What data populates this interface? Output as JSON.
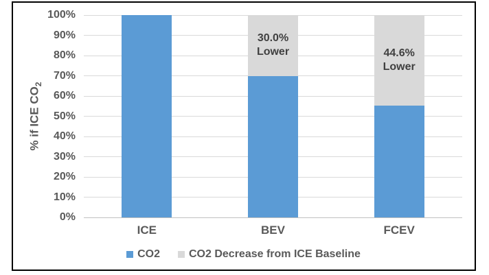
{
  "chart_data": {
    "type": "bar",
    "stacked": true,
    "title": "",
    "categories": [
      "ICE",
      "BEV",
      "FCEV"
    ],
    "series": [
      {
        "name": "CO2",
        "color": "#5B9BD5",
        "values": [
          100,
          70,
          55.4
        ]
      },
      {
        "name": "CO2 Decrease from ICE Baseline",
        "color": "#D9D9D9",
        "values": [
          0,
          30.0,
          44.6
        ]
      }
    ],
    "segment_labels": [
      {
        "category": "BEV",
        "lines": [
          "30.0%",
          "Lower"
        ]
      },
      {
        "category": "FCEV",
        "lines": [
          "44.6%",
          "Lower"
        ]
      }
    ],
    "xlabel": "",
    "ylabel": "% if ICE CO2",
    "ylabel_base": "% if ICE CO",
    "ylabel_subscript": "2",
    "ylim": [
      0,
      100
    ],
    "ytick_step": 10,
    "ytick_labels": [
      "0%",
      "10%",
      "20%",
      "30%",
      "40%",
      "50%",
      "60%",
      "70%",
      "80%",
      "90%",
      "100%"
    ],
    "grid": true,
    "legend_position": "bottom"
  },
  "style": {
    "bar_color": "#5B9BD5",
    "decrease_color": "#D9D9D9",
    "axis_text_color": "#595959",
    "segment_label_color": "#404040",
    "gridline_color": "#D9D9D9",
    "baseline_color": "#C0C0C0",
    "frame_border_color": "#000000",
    "background": "#FFFFFF"
  }
}
